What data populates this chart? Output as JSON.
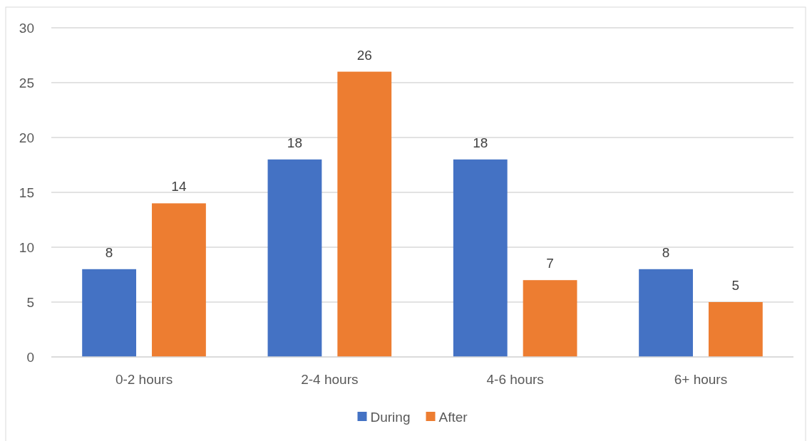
{
  "chart_data": {
    "type": "bar",
    "categories": [
      "0-2 hours",
      "2-4 hours",
      "4-6 hours",
      "6+ hours"
    ],
    "series": [
      {
        "name": "During",
        "color": "#4472c4",
        "values": [
          8,
          18,
          18,
          8
        ]
      },
      {
        "name": "After",
        "color": "#ed7d31",
        "values": [
          14,
          26,
          7,
          5
        ]
      }
    ],
    "ylim": [
      0,
      30
    ],
    "yticks": [
      0,
      5,
      10,
      15,
      20,
      25,
      30
    ],
    "grid": "y",
    "legend": "bottom",
    "data_labels": true
  }
}
